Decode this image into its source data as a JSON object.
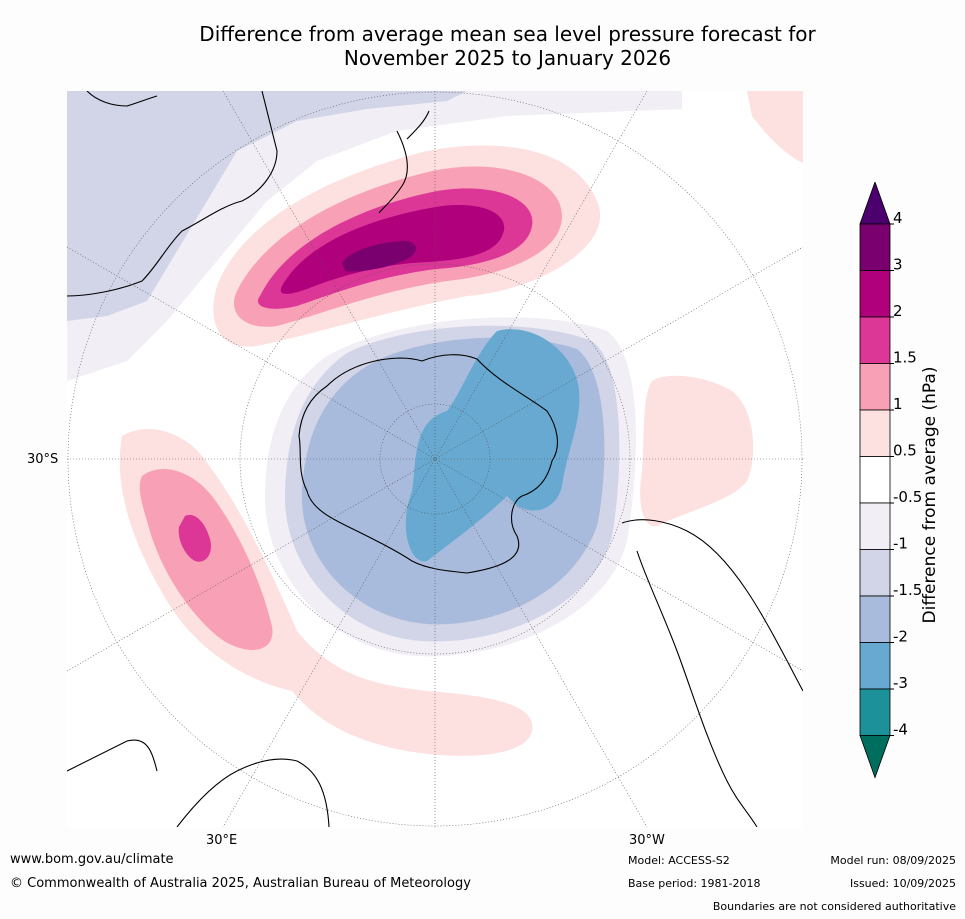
{
  "title_line1": "Difference from average mean sea level pressure forecast for",
  "title_line2": "November 2025 to January 2026",
  "axis_labels": {
    "lat_left": "30°S",
    "lon_bottom_left": "30°E",
    "lon_bottom_right": "30°W"
  },
  "colorbar": {
    "label": "Difference from average (hPa)",
    "ticks": [
      "4",
      "3",
      "2",
      "1.5",
      "1",
      "0.5",
      "-0.5",
      "-1",
      "-1.5",
      "-2",
      "-3",
      "-4"
    ],
    "colors": [
      "#4b006e",
      "#7a0070",
      "#b0007c",
      "#dc3797",
      "#f8a0b6",
      "#fde0e0",
      "#ffffff",
      "#f1eef5",
      "#d2d4e7",
      "#a9bbdc",
      "#68a9d1",
      "#1d9199",
      "#006e5f"
    ]
  },
  "footer": {
    "website": "www.bom.gov.au/climate",
    "copyright": "© Commonwealth of Australia 2025, Australian Bureau of Meteorology",
    "model": "Model: ACCESS-S2",
    "base_period": "Base period: 1981-2018",
    "model_run": "Model run: 08/09/2025",
    "issued": "Issued: 10/09/2025",
    "disclaimer": "Boundaries are not considered authoritative"
  }
}
